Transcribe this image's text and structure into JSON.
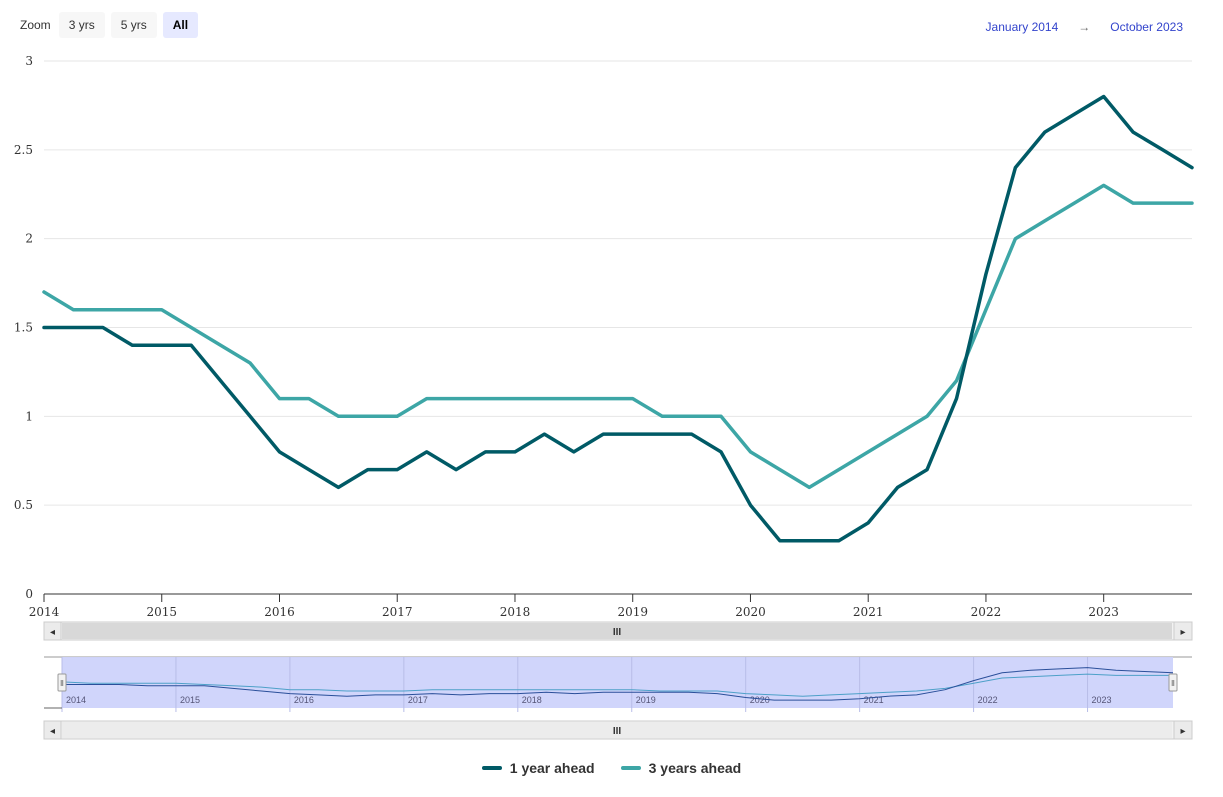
{
  "zoom": {
    "label": "Zoom",
    "buttons": [
      {
        "label": "3 yrs",
        "active": false
      },
      {
        "label": "5 yrs",
        "active": false
      },
      {
        "label": "All",
        "active": true
      }
    ]
  },
  "range": {
    "from": "January 2014",
    "arrow": "→",
    "to": "October 2023"
  },
  "scrollbar": {
    "grip": "III",
    "left_arrow": "◂",
    "right_arrow": "▸"
  },
  "navigator": {
    "handle_glyph": "Ⅱ"
  },
  "colors": {
    "series1": "#005a66",
    "series2": "#3da6a6",
    "nav_mask": "#cdd3fb",
    "scroll_track": "#d8d8d8"
  },
  "chart_data": {
    "type": "line",
    "ylim": [
      0,
      3
    ],
    "xlim": [
      2014.0,
      2023.75
    ],
    "yticks": [
      "0",
      "0.5",
      "1",
      "1.5",
      "2",
      "2.5",
      "3"
    ],
    "xticks": [
      "2014",
      "2015",
      "2016",
      "2017",
      "2018",
      "2019",
      "2020",
      "2021",
      "2022",
      "2023"
    ],
    "grid": true,
    "legend_position": "bottom-center",
    "x": [
      "2014-Q1",
      "2014-Q2",
      "2014-Q3",
      "2014-Q4",
      "2015-Q1",
      "2015-Q2",
      "2015-Q3",
      "2015-Q4",
      "2016-Q1",
      "2016-Q2",
      "2016-Q3",
      "2016-Q4",
      "2017-Q1",
      "2017-Q2",
      "2017-Q3",
      "2017-Q4",
      "2018-Q1",
      "2018-Q2",
      "2018-Q3",
      "2018-Q4",
      "2019-Q1",
      "2019-Q2",
      "2019-Q3",
      "2019-Q4",
      "2020-Q1",
      "2020-Q2",
      "2020-Q3",
      "2020-Q4",
      "2021-Q1",
      "2021-Q2",
      "2021-Q3",
      "2021-Q4",
      "2022-Q1",
      "2022-Q2",
      "2022-Q3",
      "2022-Q4",
      "2023-Q1",
      "2023-Q2",
      "2023-Q3",
      "2023-Q4"
    ],
    "series": [
      {
        "name": "1 year ahead",
        "values": [
          1.5,
          1.5,
          1.5,
          1.4,
          1.4,
          1.4,
          1.2,
          1.0,
          0.8,
          0.7,
          0.6,
          0.7,
          0.7,
          0.8,
          0.7,
          0.8,
          0.8,
          0.9,
          0.8,
          0.9,
          0.9,
          0.9,
          0.9,
          0.8,
          0.5,
          0.3,
          0.3,
          0.3,
          0.4,
          0.6,
          0.7,
          1.1,
          1.8,
          2.4,
          2.6,
          2.7,
          2.8,
          2.6,
          2.5,
          2.4
        ]
      },
      {
        "name": "3 years ahead",
        "values": [
          1.7,
          1.6,
          1.6,
          1.6,
          1.6,
          1.5,
          1.4,
          1.3,
          1.1,
          1.1,
          1.0,
          1.0,
          1.0,
          1.1,
          1.1,
          1.1,
          1.1,
          1.1,
          1.1,
          1.1,
          1.1,
          1.0,
          1.0,
          1.0,
          0.8,
          0.7,
          0.6,
          0.7,
          0.8,
          0.9,
          1.0,
          1.2,
          1.6,
          2.0,
          2.1,
          2.2,
          2.3,
          2.2,
          2.2,
          2.2
        ]
      }
    ]
  }
}
